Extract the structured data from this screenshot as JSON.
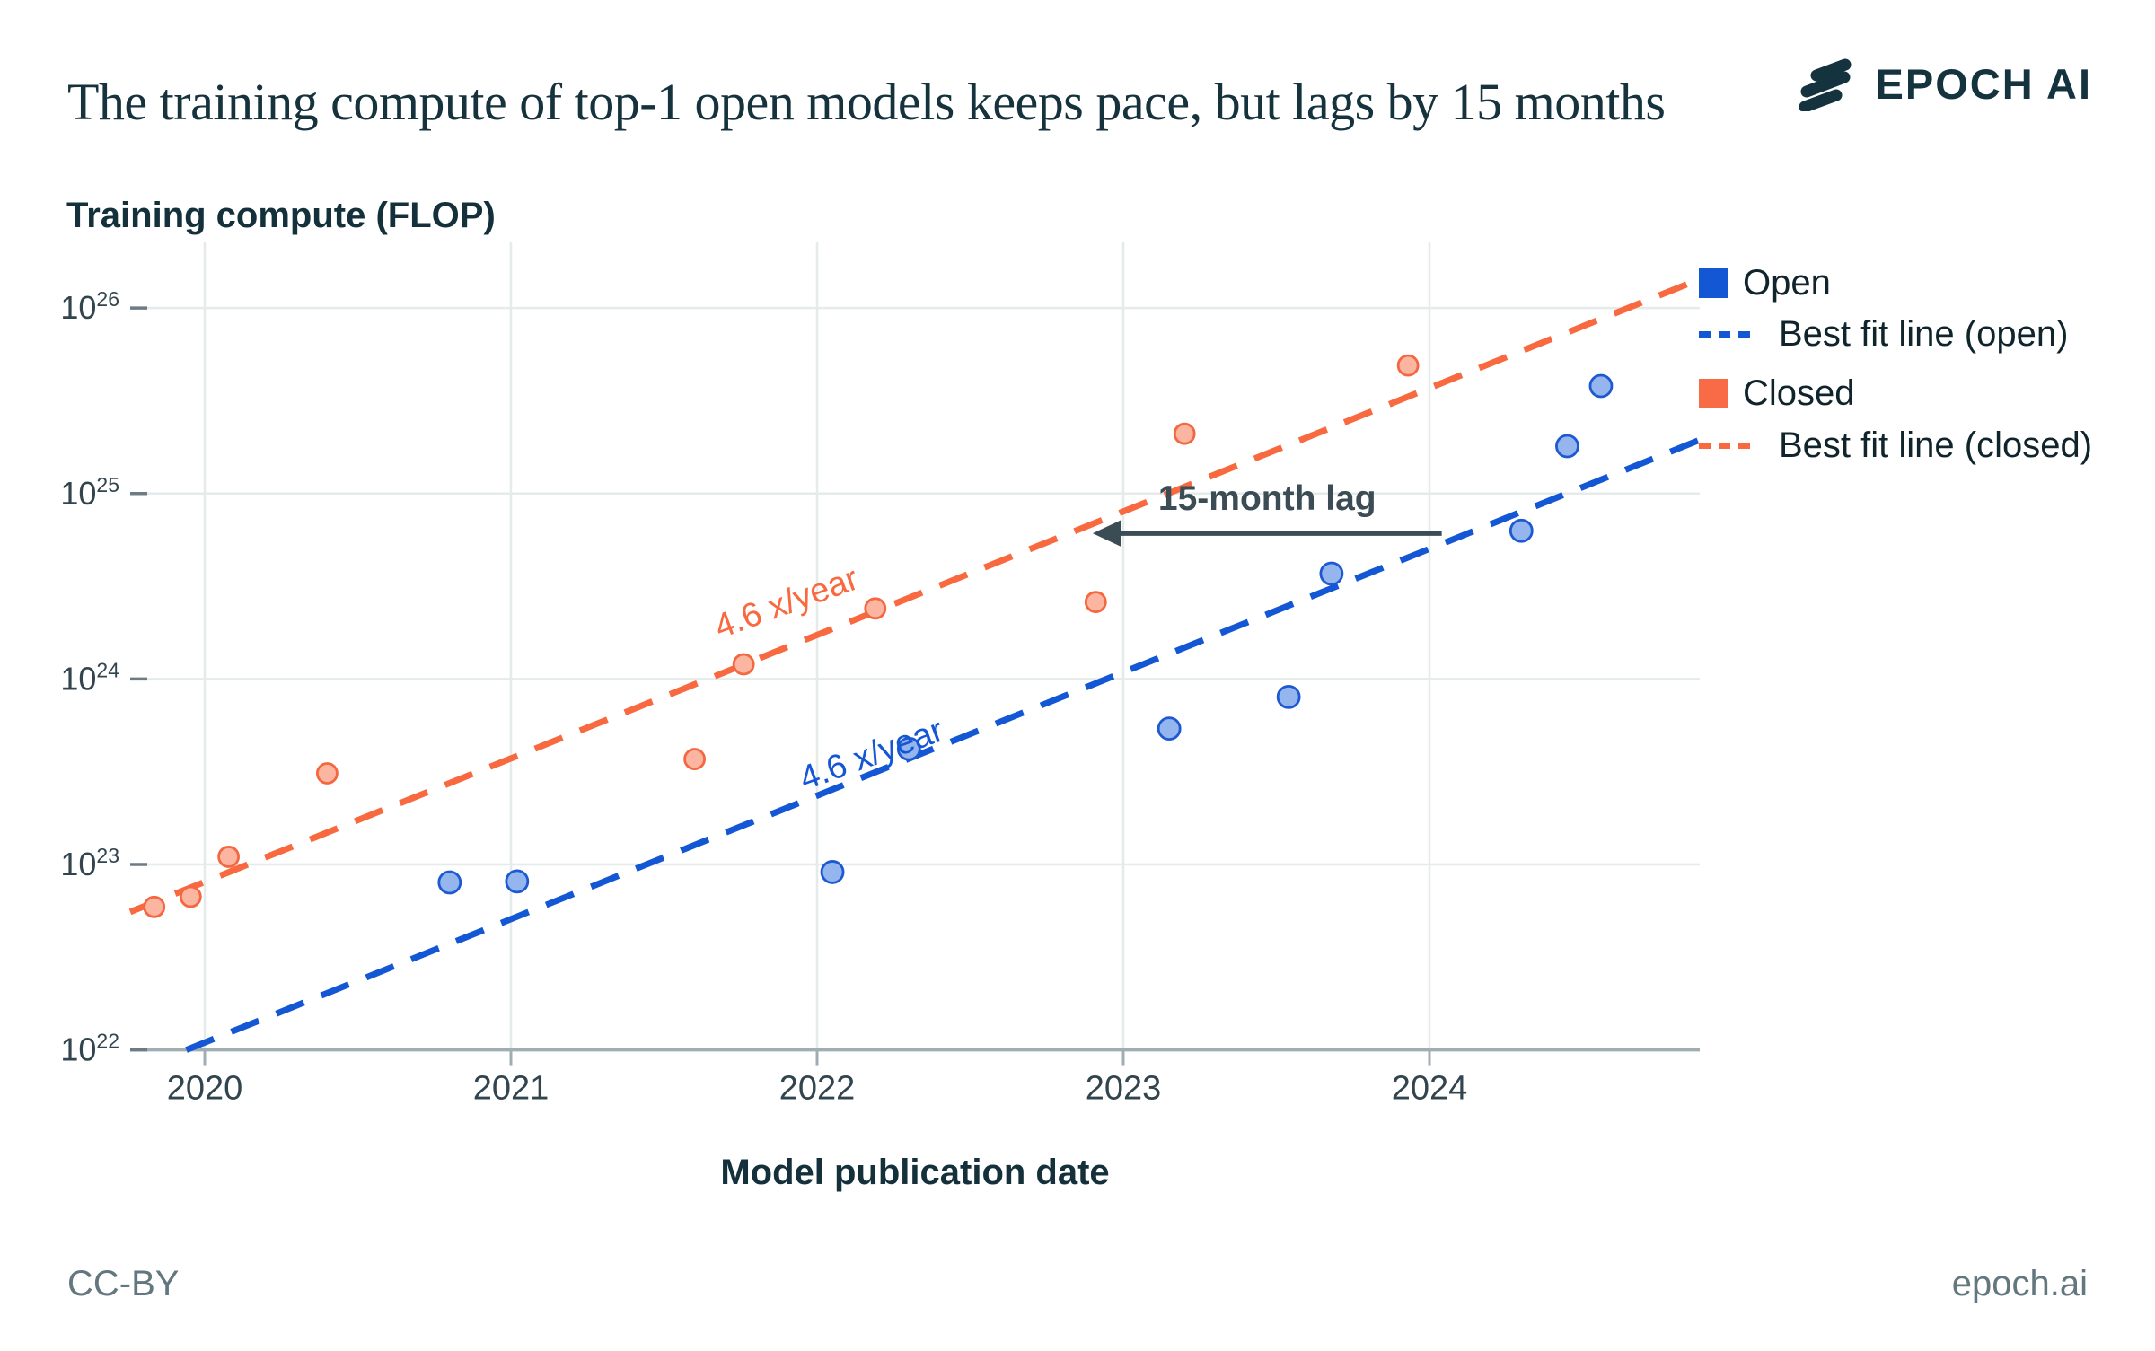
{
  "header": {
    "title": "The training compute of top-1 open models keeps pace, but lags by 15 months",
    "brand": "EPOCH AI",
    "brand_color": "#14333e"
  },
  "footer": {
    "license": "CC-BY",
    "site": "epoch.ai"
  },
  "legend": [
    {
      "label": "Open",
      "swatch": "square",
      "color": "#1357d5"
    },
    {
      "label": "Best fit line (open)",
      "swatch": "dashes",
      "color": "#1357d5"
    },
    {
      "label": "Closed",
      "swatch": "square",
      "color": "#f96b46"
    },
    {
      "label": "Best fit line (closed)",
      "swatch": "dashes",
      "color": "#f8693f"
    }
  ],
  "chart_data": {
    "type": "scatter",
    "title": "The training compute of top-1 open models keeps pace, but lags by 15 months",
    "xlabel": "Model publication date",
    "ylabel": "Training compute (FLOP)",
    "x_scale": "linear-years",
    "y_scale": "log10",
    "xlim": [
      2019.7566,
      2024.8827
    ],
    "loglim": [
      22,
      26.354
    ],
    "x_ticks": [
      2020,
      2021,
      2022,
      2023,
      2024
    ],
    "y_tick_exponents": [
      22,
      23,
      24,
      25,
      26
    ],
    "grid": true,
    "legend_position": "right-top-outside",
    "colors": {
      "open_fill": "#94b5ed",
      "open_stroke": "#1d59d2",
      "open_line": "#1357d5",
      "closed_fill": "#fcb5a0",
      "closed_stroke": "#f46740",
      "closed_line": "#f8693f",
      "grid": "#e4ebea",
      "axis": "#a0aeb4",
      "tick_dark": "#6b7c86",
      "tick_label": "#32454f",
      "annotation": "#3b4c55"
    },
    "series": [
      {
        "name": "Open",
        "marker_radius": 12,
        "points": [
          {
            "x": 2020.8,
            "y": 8e+22
          },
          {
            "x": 2021.02,
            "y": 8.1e+22
          },
          {
            "x": 2022.05,
            "y": 9.1e+22
          },
          {
            "x": 2022.3,
            "y": 4.2e+23
          },
          {
            "x": 2023.15,
            "y": 5.4e+23
          },
          {
            "x": 2023.54,
            "y": 8e+23
          },
          {
            "x": 2023.68,
            "y": 3.7e+24
          },
          {
            "x": 2024.3,
            "y": 6.3e+24
          },
          {
            "x": 2024.45,
            "y": 1.8e+25
          },
          {
            "x": 2024.56,
            "y": 3.8e+25
          }
        ]
      },
      {
        "name": "Closed",
        "marker_radius": 11,
        "points": [
          {
            "x": 2019.835,
            "y": 5.9e+22
          },
          {
            "x": 2019.954,
            "y": 6.7e+22
          },
          {
            "x": 2020.078,
            "y": 1.1e+23
          },
          {
            "x": 2020.4,
            "y": 3.1e+23
          },
          {
            "x": 2021.6,
            "y": 3.7e+23
          },
          {
            "x": 2021.76,
            "y": 1.2e+24
          },
          {
            "x": 2022.19,
            "y": 2.4e+24
          },
          {
            "x": 2022.91,
            "y": 2.6e+24
          },
          {
            "x": 2023.2,
            "y": 2.1e+25
          },
          {
            "x": 2023.93,
            "y": 4.9e+25
          }
        ]
      }
    ],
    "trendlines": [
      {
        "name": "Best fit line (open)",
        "growth": "4.6x/year",
        "log10_at_2020": 22.04,
        "ends": [
          [
            2019.94,
            22.0
          ],
          [
            2024.8827,
            25.289
          ]
        ]
      },
      {
        "name": "Best fit line (closed)",
        "growth": "4.6x/year",
        "log10_at_2020": 22.906,
        "ends": [
          [
            2019.7566,
            22.744
          ],
          [
            2024.8827,
            26.156
          ]
        ]
      }
    ],
    "annotations": {
      "closed_rate": {
        "text": "4.6 x/year",
        "x": 2021.912,
        "log": 24.355,
        "rotation": -20
      },
      "open_rate": {
        "text": "4.6 x/year",
        "x": 2022.19,
        "log": 23.537,
        "rotation": -20
      },
      "lag": {
        "text": "15-month lag",
        "log": 24.785,
        "x_from": 2022.9,
        "x_to": 2024.04
      }
    }
  }
}
